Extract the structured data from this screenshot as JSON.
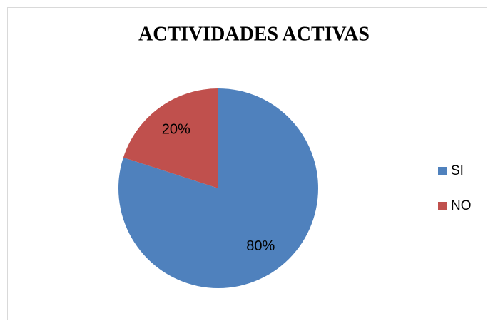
{
  "chart_data": {
    "type": "pie",
    "title": "ACTIVIDADES ACTIVAS",
    "categories": [
      "SI",
      "NO"
    ],
    "values": [
      80,
      20
    ],
    "value_labels": [
      "80%",
      "20%"
    ],
    "colors": [
      "#4f81bd",
      "#c0504d"
    ],
    "legend": "right"
  }
}
